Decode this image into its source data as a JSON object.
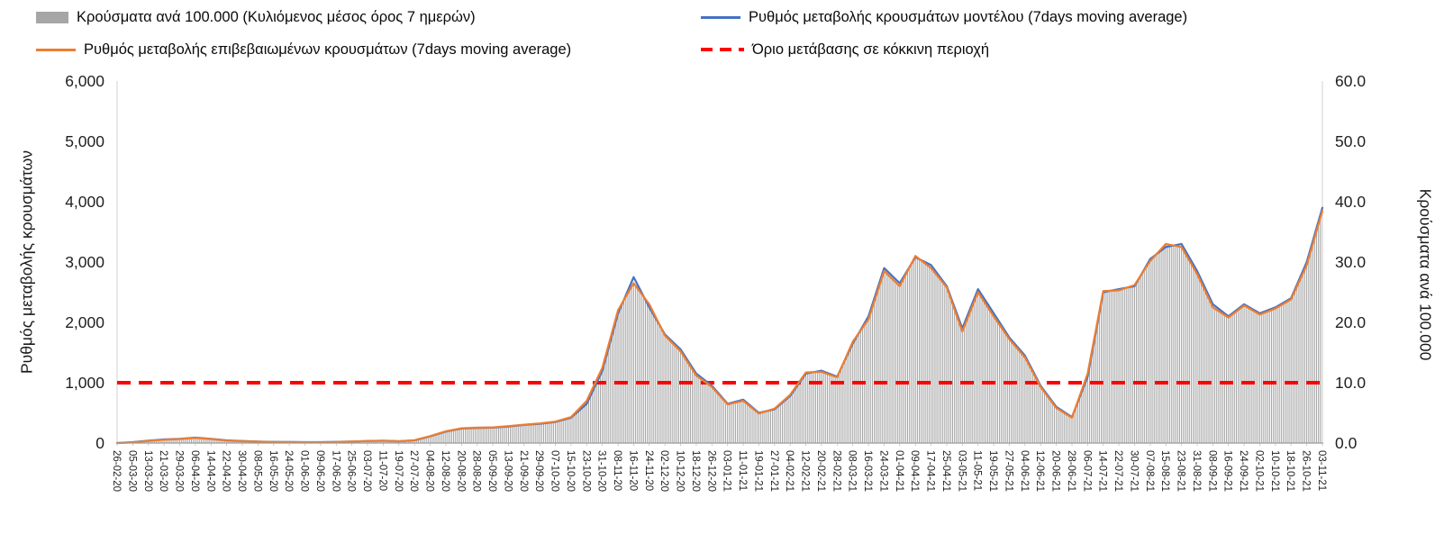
{
  "legend": {
    "items": [
      {
        "label": "Κρούσματα ανά 100.000 (Κυλιόμενος μέσος όρος 7 ημερών)",
        "type": "bar",
        "color": "#a6a6a6"
      },
      {
        "label": "Ρυθμός μεταβολής κρουσμάτων μοντέλου (7days moving average)",
        "type": "line",
        "color": "#4472c4"
      },
      {
        "label": "Ρυθμός μεταβολής επιβεβαιωμένων κρουσμάτων (7days moving average)",
        "type": "line",
        "color": "#ed7d31"
      },
      {
        "label": "Όριο μετάβασης σε κόκκινη περιοχή",
        "type": "dashed-line",
        "color": "#fe0000"
      }
    ]
  },
  "chart_data": {
    "type": "combo",
    "layout": {
      "legend_position": "top",
      "grid": false,
      "plot_background": "#ffffff"
    },
    "left_axis": {
      "label": "Ρυθμός μεταβολής κρουσμάτων",
      "min": 0,
      "max": 6000,
      "ticks": [
        "0",
        "1,000",
        "2,000",
        "3,000",
        "4,000",
        "5,000",
        "6,000"
      ]
    },
    "right_axis": {
      "label": "Κρούσματα ανά 100.000",
      "min": 0,
      "max": 60,
      "ticks": [
        "0.0",
        "10.0",
        "20.0",
        "30.0",
        "40.0",
        "50.0",
        "60.0"
      ]
    },
    "threshold": {
      "label": "Όριο μετάβασης σε κόκκινη περιοχή",
      "value_left_axis": 1000,
      "color": "#fe0000",
      "style": "dashed"
    },
    "x_labels": [
      "26-02-20",
      "05-03-20",
      "13-03-20",
      "21-03-20",
      "29-03-20",
      "06-04-20",
      "14-04-20",
      "22-04-20",
      "30-04-20",
      "08-05-20",
      "16-05-20",
      "24-05-20",
      "01-06-20",
      "09-06-20",
      "17-06-20",
      "25-06-20",
      "03-07-20",
      "11-07-20",
      "19-07-20",
      "27-07-20",
      "04-08-20",
      "12-08-20",
      "20-08-20",
      "28-08-20",
      "05-09-20",
      "13-09-20",
      "21-09-20",
      "29-09-20",
      "07-10-20",
      "15-10-20",
      "23-10-20",
      "31-10-20",
      "08-11-20",
      "16-11-20",
      "24-11-20",
      "02-12-20",
      "10-12-20",
      "18-12-20",
      "26-12-20",
      "03-01-21",
      "11-01-21",
      "19-01-21",
      "27-01-21",
      "04-02-21",
      "12-02-21",
      "20-02-21",
      "28-02-21",
      "08-03-21",
      "16-03-21",
      "24-03-21",
      "01-04-21",
      "09-04-21",
      "17-04-21",
      "25-04-21",
      "03-05-21",
      "11-05-21",
      "19-05-21",
      "27-05-21",
      "04-06-21",
      "12-06-21",
      "20-06-21",
      "28-06-21",
      "06-07-21",
      "14-07-21",
      "22-07-21",
      "30-07-21",
      "07-08-21",
      "15-08-21",
      "23-08-21",
      "31-08-21",
      "08-09-21",
      "16-09-21",
      "24-09-21",
      "02-10-21",
      "10-10-21",
      "18-10-21",
      "26-10-21",
      "03-11-21"
    ],
    "series": [
      {
        "name": "Κρούσματα ανά 100.000 (Κυλιόμενος μέσος όρος 7 ημερών)",
        "type": "bar",
        "axis": "right",
        "color": "#a6a6a6",
        "values": [
          0,
          0.1,
          0.4,
          0.6,
          0.7,
          0.9,
          0.7,
          0.4,
          0.3,
          0.2,
          0.2,
          0.2,
          0.1,
          0.1,
          0.2,
          0.2,
          0.3,
          0.4,
          0.3,
          0.5,
          1.2,
          2,
          2.5,
          2.6,
          2.6,
          2.8,
          3.1,
          3.3,
          3.6,
          4.3,
          7,
          12.5,
          22,
          26.5,
          23,
          17.8,
          15.2,
          11.2,
          9.3,
          6.4,
          7,
          4.9,
          5.7,
          8,
          11.7,
          11.8,
          10.9,
          16.8,
          20.5,
          28.5,
          26,
          31,
          29,
          25.8,
          18.5,
          25,
          21,
          17.2,
          14.2,
          9.3,
          5.8,
          4.2,
          11.5,
          25.2,
          25.3,
          26.2,
          30.2,
          33,
          32.5,
          28,
          22.5,
          20.8,
          22.8,
          21.3,
          22.3,
          23.8,
          29.5,
          38.5
        ]
      },
      {
        "name": "Ρυθμός μεταβολής κρουσμάτων μοντέλου (7days moving average)",
        "type": "line",
        "axis": "left",
        "color": "#4472c4",
        "values": [
          0,
          15,
          40,
          60,
          70,
          90,
          70,
          45,
          35,
          25,
          20,
          18,
          15,
          15,
          20,
          25,
          35,
          40,
          30,
          45,
          110,
          190,
          240,
          250,
          255,
          275,
          300,
          320,
          350,
          420,
          650,
          1200,
          2150,
          2750,
          2250,
          1800,
          1550,
          1150,
          950,
          650,
          720,
          500,
          560,
          780,
          1150,
          1200,
          1100,
          1650,
          2100,
          2900,
          2650,
          3080,
          2950,
          2600,
          1900,
          2550,
          2150,
          1750,
          1450,
          950,
          600,
          430,
          1100,
          2500,
          2550,
          2600,
          3050,
          3250,
          3300,
          2850,
          2300,
          2100,
          2300,
          2150,
          2250,
          2400,
          3000,
          3900
        ]
      },
      {
        "name": "Ρυθμός μεταβολής επιβεβαιωμένων κρουσμάτων (7days moving average)",
        "type": "line",
        "axis": "left",
        "color": "#ed7d31",
        "values": [
          0,
          12,
          35,
          55,
          65,
          85,
          65,
          40,
          30,
          22,
          18,
          16,
          14,
          14,
          18,
          24,
          33,
          38,
          28,
          48,
          115,
          195,
          245,
          255,
          260,
          280,
          305,
          325,
          355,
          430,
          700,
          1250,
          2200,
          2650,
          2300,
          1780,
          1520,
          1120,
          930,
          640,
          700,
          490,
          570,
          800,
          1170,
          1180,
          1090,
          1680,
          2050,
          2850,
          2600,
          3100,
          2900,
          2580,
          1850,
          2500,
          2100,
          1720,
          1420,
          930,
          580,
          420,
          1150,
          2520,
          2530,
          2620,
          3020,
          3300,
          3250,
          2800,
          2250,
          2080,
          2280,
          2130,
          2230,
          2380,
          2950,
          3850
        ]
      }
    ]
  }
}
